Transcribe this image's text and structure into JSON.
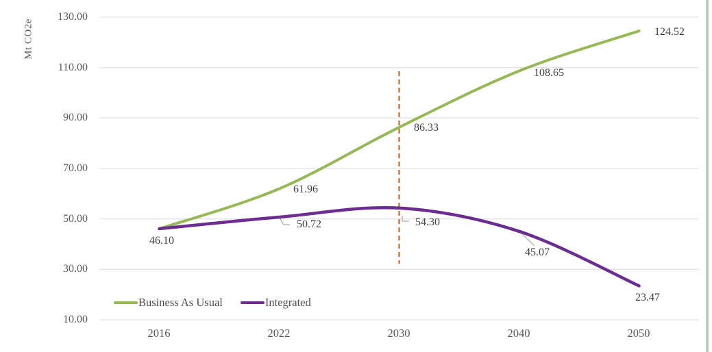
{
  "chart_data": {
    "type": "line",
    "title": "",
    "ylabel": "Mt CO2e",
    "xlabel": "",
    "categories": [
      "2016",
      "2022",
      "2030",
      "2040",
      "2050"
    ],
    "yticks": [
      "130.00",
      "110.00",
      "90.00",
      "70.00",
      "50.00",
      "30.00",
      "10.00"
    ],
    "ylim": [
      10,
      130
    ],
    "grid": "horizontal-only",
    "line_style": "smooth",
    "legend_position": "inside-bottom-left",
    "series": [
      {
        "name": "Business As Usual",
        "color": "#97b857",
        "values": [
          46.1,
          61.96,
          86.33,
          108.65,
          124.52
        ],
        "labels": [
          "46.10",
          "61.96",
          "86.33",
          "108.65",
          "124.52"
        ]
      },
      {
        "name": "Integrated",
        "color": "#6b2d90",
        "values": [
          46.1,
          50.72,
          54.3,
          45.07,
          23.47
        ],
        "labels": [
          "46.10",
          "50.72",
          "54.30",
          "45.07",
          "23.47"
        ]
      }
    ],
    "annotations": {
      "vline": {
        "at_category": "2030",
        "style": "dashed",
        "color": "#e0793b"
      },
      "callout_leader_lines_for": [
        "50.72",
        "54.30",
        "45.07"
      ]
    }
  },
  "legend": {
    "items": [
      {
        "label": "Business As Usual",
        "color": "#97b857"
      },
      {
        "label": "Integrated",
        "color": "#6b2d90"
      }
    ]
  },
  "colors": {
    "gridline": "#e3e3e3",
    "tick_text": "#595959",
    "data_label_text": "#3f3f3f",
    "leader_line": "#a9a9a9",
    "right_edge_stripe": "#b8cfc2",
    "background": "#ffffff"
  }
}
